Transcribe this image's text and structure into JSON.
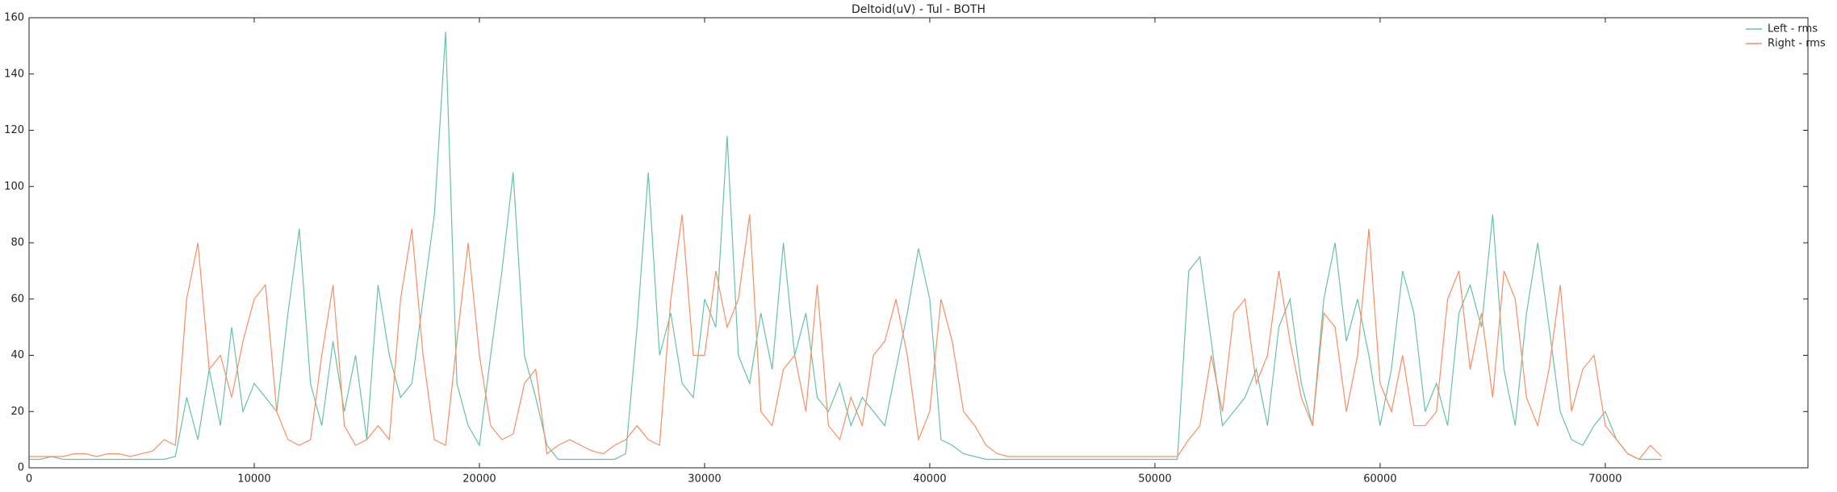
{
  "chart_data": {
    "type": "line",
    "title": "Deltoid(uV) - Tul - BOTH",
    "x": [
      0,
      500,
      1000,
      1500,
      2000,
      2500,
      3000,
      3500,
      4000,
      4500,
      5000,
      5500,
      6000,
      6500,
      7000,
      7500,
      8000,
      8500,
      9000,
      9500,
      10000,
      10500,
      11000,
      11500,
      12000,
      12500,
      13000,
      13500,
      14000,
      14500,
      15000,
      15500,
      16000,
      16500,
      17000,
      17500,
      18000,
      18500,
      19000,
      19500,
      20000,
      20500,
      21000,
      21500,
      22000,
      22500,
      23000,
      23500,
      24000,
      24500,
      25000,
      25500,
      26000,
      26500,
      27000,
      27500,
      28000,
      28500,
      29000,
      29500,
      30000,
      30500,
      31000,
      31500,
      32000,
      32500,
      33000,
      33500,
      34000,
      34500,
      35000,
      35500,
      36000,
      36500,
      37000,
      37500,
      38000,
      38500,
      39000,
      39500,
      40000,
      40500,
      41000,
      41500,
      42000,
      42500,
      43000,
      43500,
      44000,
      44500,
      45000,
      45500,
      46000,
      46500,
      47000,
      47500,
      48000,
      48500,
      49000,
      49500,
      50000,
      50500,
      51000,
      51500,
      52000,
      52500,
      53000,
      53500,
      54000,
      54500,
      55000,
      55500,
      56000,
      56500,
      57000,
      57500,
      58000,
      58500,
      59000,
      59500,
      60000,
      60500,
      61000,
      61500,
      62000,
      62500,
      63000,
      63500,
      64000,
      64500,
      65000,
      65500,
      66000,
      66500,
      67000,
      67500,
      68000,
      68500,
      69000,
      69500,
      70000,
      70500,
      71000,
      71500,
      72000,
      72500
    ],
    "series": [
      {
        "name": "Left - rms",
        "color": "#66c2a5",
        "values": [
          3,
          3,
          4,
          3,
          3,
          3,
          3,
          3,
          3,
          3,
          3,
          3,
          3,
          4,
          25,
          10,
          35,
          15,
          50,
          20,
          30,
          25,
          20,
          55,
          85,
          30,
          15,
          45,
          20,
          40,
          10,
          65,
          40,
          25,
          30,
          60,
          90,
          155,
          30,
          15,
          8,
          40,
          70,
          105,
          40,
          25,
          8,
          3,
          3,
          3,
          3,
          3,
          3,
          5,
          50,
          105,
          40,
          55,
          30,
          25,
          60,
          50,
          118,
          40,
          30,
          55,
          35,
          80,
          40,
          55,
          25,
          20,
          30,
          15,
          25,
          20,
          15,
          35,
          55,
          78,
          60,
          10,
          8,
          5,
          4,
          3,
          3,
          3,
          3,
          3,
          3,
          3,
          3,
          3,
          3,
          3,
          3,
          3,
          3,
          3,
          3,
          3,
          3,
          70,
          75,
          45,
          15,
          20,
          25,
          35,
          15,
          50,
          60,
          30,
          15,
          60,
          80,
          45,
          60,
          40,
          15,
          35,
          70,
          55,
          20,
          30,
          15,
          55,
          65,
          50,
          90,
          35,
          15,
          55,
          80,
          50,
          20,
          10,
          8,
          15,
          20,
          10,
          5,
          3,
          3,
          3
        ]
      },
      {
        "name": "Right - rms",
        "color": "#fc8d62",
        "values": [
          4,
          4,
          4,
          4,
          5,
          5,
          4,
          5,
          5,
          4,
          5,
          6,
          10,
          8,
          60,
          80,
          35,
          40,
          25,
          45,
          60,
          65,
          20,
          10,
          8,
          10,
          40,
          65,
          15,
          8,
          10,
          15,
          10,
          60,
          85,
          40,
          10,
          8,
          45,
          80,
          40,
          15,
          10,
          12,
          30,
          35,
          5,
          8,
          10,
          8,
          6,
          5,
          8,
          10,
          15,
          10,
          8,
          60,
          90,
          40,
          40,
          70,
          50,
          60,
          90,
          20,
          15,
          35,
          40,
          20,
          65,
          15,
          10,
          25,
          15,
          40,
          45,
          60,
          40,
          10,
          20,
          60,
          45,
          20,
          15,
          8,
          5,
          4,
          4,
          4,
          4,
          4,
          4,
          4,
          4,
          4,
          4,
          4,
          4,
          4,
          4,
          4,
          4,
          10,
          15,
          40,
          20,
          55,
          60,
          30,
          40,
          70,
          45,
          25,
          15,
          55,
          50,
          20,
          40,
          85,
          30,
          20,
          40,
          15,
          15,
          20,
          60,
          70,
          35,
          55,
          25,
          70,
          60,
          25,
          15,
          35,
          65,
          20,
          35,
          40,
          15,
          10,
          5,
          3,
          8,
          4
        ]
      }
    ],
    "xlim": [
      0,
      79000
    ],
    "xticks": [
      0,
      10000,
      20000,
      30000,
      40000,
      50000,
      60000,
      70000
    ],
    "ylim": [
      0,
      160
    ],
    "yticks": [
      0,
      20,
      40,
      60,
      80,
      100,
      120,
      140,
      160
    ],
    "legend": "upper right"
  }
}
